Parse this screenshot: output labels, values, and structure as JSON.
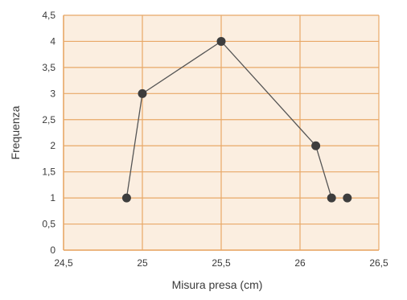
{
  "chart_data": {
    "type": "line",
    "title": "",
    "xlabel": "Misura presa (cm)",
    "ylabel": "Frequenza",
    "xlim": [
      24.5,
      26.5
    ],
    "ylim": [
      0,
      4.5
    ],
    "x_ticks": [
      24.5,
      25,
      25.5,
      26,
      26.5
    ],
    "x_tick_labels": [
      "24,5",
      "25",
      "25,5",
      "26",
      "26,5"
    ],
    "y_ticks": [
      0,
      0.5,
      1,
      1.5,
      2,
      2.5,
      3,
      3.5,
      4,
      4.5
    ],
    "y_tick_labels": [
      "0",
      "0,5",
      "1",
      "1,5",
      "2",
      "2,5",
      "3",
      "3,5",
      "4",
      "4,5"
    ],
    "grid": true,
    "series": [
      {
        "x": [
          24.9,
          25.0,
          25.5,
          26.1,
          26.2
        ],
        "y": [
          1,
          3,
          4,
          2,
          1
        ]
      },
      {
        "x": [
          26.3
        ],
        "y": [
          1
        ]
      }
    ],
    "colors": {
      "background": "#fbeee0",
      "grid": "#e8a867",
      "line": "#555555",
      "marker": "#3d3d3d"
    }
  }
}
